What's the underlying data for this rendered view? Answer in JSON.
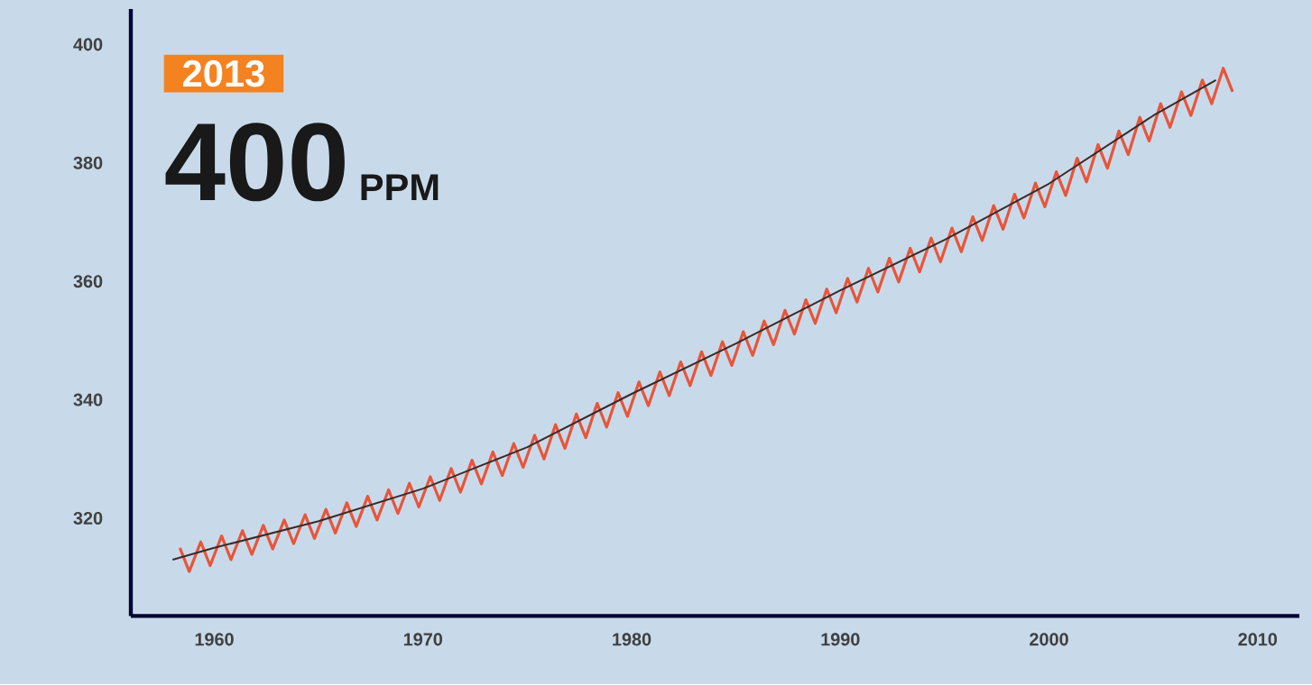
{
  "chart_data": {
    "type": "line",
    "annotations": [
      "2013",
      "400",
      "PPM"
    ],
    "xlim": [
      1956,
      2012
    ],
    "xticks": [
      1960,
      1970,
      1980,
      1990,
      2000,
      2010
    ],
    "ylim": [
      303.5,
      406
    ],
    "yticks": [
      320,
      340,
      360,
      380,
      400
    ],
    "series": [
      {
        "color": "#e8553a",
        "x": [
          1958.35,
          1958.8,
          1959.35,
          1959.8,
          1960.35,
          1960.8,
          1961.35,
          1961.8,
          1962.35,
          1962.8,
          1963.35,
          1963.8,
          1964.35,
          1964.8,
          1965.35,
          1965.8,
          1966.35,
          1966.8,
          1967.35,
          1967.8,
          1968.35,
          1968.8,
          1969.35,
          1969.8,
          1970.35,
          1970.8,
          1971.35,
          1971.8,
          1972.35,
          1972.8,
          1973.35,
          1973.8,
          1974.35,
          1974.8,
          1975.35,
          1975.8,
          1976.35,
          1976.8,
          1977.35,
          1977.8,
          1978.35,
          1978.8,
          1979.35,
          1979.8,
          1980.35,
          1980.8,
          1981.35,
          1981.8,
          1982.35,
          1982.8,
          1983.35,
          1983.8,
          1984.35,
          1984.8,
          1985.35,
          1985.8,
          1986.35,
          1986.8,
          1987.35,
          1987.8,
          1988.35,
          1988.8,
          1989.35,
          1989.8,
          1990.35,
          1990.8,
          1991.35,
          1991.8,
          1992.35,
          1992.8,
          1993.35,
          1993.8,
          1994.35,
          1994.8,
          1995.35,
          1995.8,
          1996.35,
          1996.8,
          1997.35,
          1997.8,
          1998.35,
          1998.8,
          1999.35,
          1999.8,
          2000.35,
          2000.8,
          2001.35,
          2001.8,
          2002.35,
          2002.8,
          2003.35,
          2003.8,
          2004.35,
          2004.8,
          2005.35,
          2005.8,
          2006.35,
          2006.8,
          2007.35,
          2007.8,
          2008.35,
          2008.8
        ],
        "values": [
          315,
          311,
          316,
          312,
          317,
          313,
          317.9,
          313.9,
          318.8,
          314.8,
          319.7,
          315.7,
          320.6,
          316.6,
          321.5,
          317.5,
          322.6,
          318.6,
          323.7,
          319.7,
          324.8,
          320.8,
          325.9,
          321.9,
          327,
          323,
          328.4,
          324.4,
          329.8,
          325.8,
          331.2,
          327.2,
          332.6,
          328.6,
          334,
          330,
          335.8,
          331.8,
          337.6,
          333.6,
          339.4,
          335.4,
          341.2,
          337.2,
          343,
          339,
          344.7,
          340.7,
          346.4,
          342.4,
          348.1,
          344.1,
          349.8,
          345.8,
          351.5,
          347.5,
          353.3,
          349.3,
          355.1,
          351.1,
          356.9,
          352.9,
          358.7,
          354.7,
          360.5,
          356.5,
          362.2,
          358.2,
          363.9,
          359.9,
          365.6,
          361.6,
          367.3,
          363.3,
          369,
          365,
          370.9,
          366.9,
          372.8,
          368.8,
          374.7,
          370.7,
          376.6,
          372.6,
          378.5,
          374.5,
          380.8,
          376.8,
          383.1,
          379.1,
          385.4,
          381.4,
          387.7,
          383.7,
          390,
          386,
          392,
          388,
          394,
          390,
          396,
          392
        ]
      },
      {
        "color": "#3a2a2a",
        "x": [
          1958,
          1960,
          1965,
          1970,
          1975,
          1980,
          1985,
          1990,
          1995,
          2000,
          2005,
          2008
        ],
        "values": [
          313,
          315,
          319.5,
          325,
          332,
          341,
          349.5,
          358.5,
          367,
          376.5,
          388,
          394
        ]
      }
    ]
  }
}
